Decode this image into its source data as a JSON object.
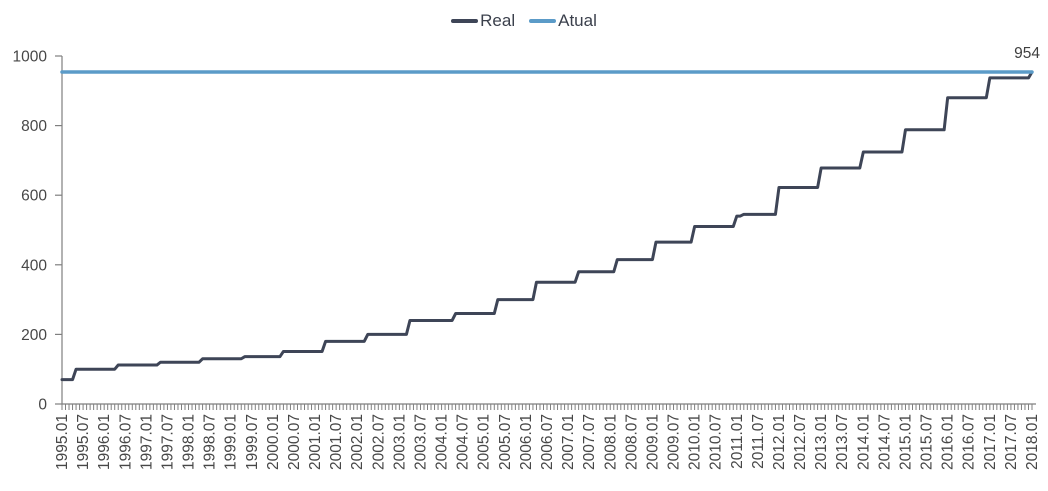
{
  "chart_data": {
    "type": "line",
    "title": "",
    "grid": false,
    "axis_color": "#7f7f7f",
    "text_color": "#474747",
    "legend": {
      "position": "top-center",
      "items": [
        {
          "label": "Real",
          "color": "#3e4557"
        },
        {
          "label": "Atual",
          "color": "#5b9bc8"
        }
      ]
    },
    "x": {
      "start": "1995.01",
      "end": "2018.01",
      "interval": "monthly",
      "tick_label_every_months": 6,
      "labels": [
        "1995.01",
        "1995.07",
        "1996.01",
        "1996.07",
        "1997.01",
        "1997.07",
        "1998.01",
        "1998.07",
        "1999.01",
        "1999.07",
        "2000.01",
        "2000.07",
        "2001.01",
        "2001.07",
        "2002.01",
        "2002.07",
        "2003.01",
        "2003.07",
        "2004.01",
        "2004.07",
        "2005.01",
        "2005.07",
        "2006.01",
        "2006.07",
        "2007.01",
        "2007.07",
        "2008.01",
        "2008.07",
        "2009.01",
        "2009.07",
        "2010.01",
        "2010.07",
        "2011.01",
        "2011.07",
        "2012.01",
        "2012.07",
        "2013.01",
        "2013.07",
        "2014.01",
        "2014.07",
        "2015.01",
        "2015.07",
        "2016.01",
        "2016.07",
        "2017.01",
        "2017.07",
        "2018.01"
      ]
    },
    "y": {
      "min": 0,
      "max": 1000,
      "ticks": [
        0,
        200,
        400,
        600,
        800,
        1000
      ]
    },
    "series": [
      {
        "name": "Real",
        "color": "#3e4557",
        "style": "step",
        "changes": [
          [
            "1995.01",
            70
          ],
          [
            "1995.05",
            100
          ],
          [
            "1996.05",
            112
          ],
          [
            "1997.05",
            120
          ],
          [
            "1998.05",
            130
          ],
          [
            "1999.05",
            136
          ],
          [
            "2000.04",
            151
          ],
          [
            "2001.04",
            180
          ],
          [
            "2002.04",
            200
          ],
          [
            "2003.04",
            240
          ],
          [
            "2004.05",
            260
          ],
          [
            "2005.05",
            300
          ],
          [
            "2006.04",
            350
          ],
          [
            "2007.04",
            380
          ],
          [
            "2008.03",
            415
          ],
          [
            "2009.02",
            465
          ],
          [
            "2010.01",
            510
          ],
          [
            "2011.01",
            540
          ],
          [
            "2011.03",
            545
          ],
          [
            "2012.01",
            622
          ],
          [
            "2013.01",
            678
          ],
          [
            "2014.01",
            724
          ],
          [
            "2015.01",
            788
          ],
          [
            "2016.01",
            880
          ],
          [
            "2017.01",
            937
          ],
          [
            "2018.01",
            954
          ]
        ]
      },
      {
        "name": "Atual",
        "color": "#5b9bc8",
        "style": "constant",
        "value": 954
      }
    ],
    "annotations": [
      {
        "text": "954",
        "position": "top-right"
      }
    ]
  }
}
